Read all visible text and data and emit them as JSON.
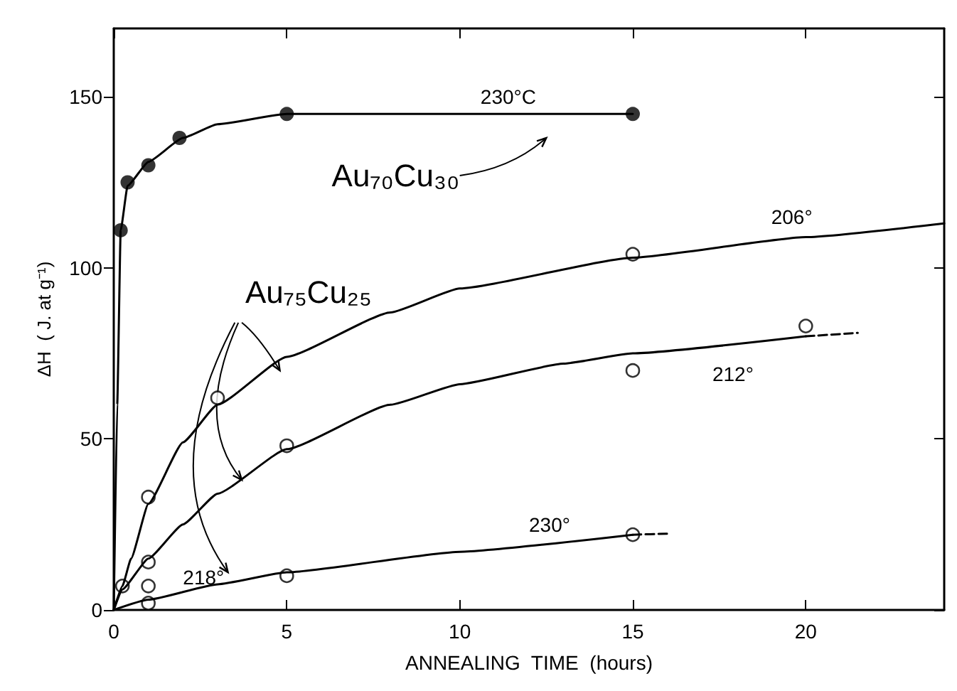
{
  "chart_data": {
    "type": "line",
    "xlabel": "ANNEALING  TIME  (hours)",
    "ylabel": "ΔH  ( J. at g⁻¹)",
    "xlim": [
      0,
      24
    ],
    "ylim": [
      0,
      170
    ],
    "xticks": [
      0,
      5,
      10,
      15,
      20
    ],
    "yticks": [
      0,
      50,
      100,
      150
    ],
    "grid": false,
    "series": [
      {
        "color": "#000000",
        "marker": "none",
        "x": [
          0,
          0.1,
          0.2,
          0.4,
          1,
          2,
          3,
          5,
          15
        ],
        "values": [
          0,
          60,
          111,
          124,
          131,
          138,
          142,
          145,
          145
        ]
      },
      {
        "type": "scatter",
        "color": "#000000",
        "marker": "circle",
        "x": [
          0.2,
          0.4,
          1,
          1.9,
          5,
          15
        ],
        "values": [
          111,
          125,
          130,
          138,
          145,
          145
        ]
      },
      {
        "color": "#000000",
        "marker": "none",
        "x": [
          0,
          0.25,
          0.5,
          1,
          2,
          3,
          5,
          8,
          10,
          15,
          20,
          24
        ],
        "values": [
          0,
          7,
          15,
          31,
          49,
          60,
          74,
          87,
          94,
          103,
          109,
          113
        ]
      },
      {
        "type": "scatter",
        "color": "#000000",
        "marker": "open-circle",
        "x": [
          0.25,
          1,
          3,
          15
        ],
        "values": [
          7,
          33,
          62,
          104
        ]
      },
      {
        "color": "#000000",
        "marker": "none",
        "x": [
          0,
          0.25,
          1,
          2,
          3,
          5,
          8,
          10,
          13,
          15,
          20
        ],
        "values": [
          0,
          6,
          15,
          25,
          34,
          47,
          60,
          66,
          72,
          75,
          80
        ]
      },
      {
        "color": "#000000",
        "marker": "none",
        "line_style": "dashed",
        "x": [
          20,
          21.5
        ],
        "values": [
          80,
          81
        ]
      },
      {
        "type": "scatter",
        "color": "#000000",
        "marker": "open-circle",
        "x": [
          1,
          5,
          15,
          20
        ],
        "values": [
          14,
          48,
          70,
          83
        ]
      },
      {
        "color": "#000000",
        "marker": "none",
        "x": [
          0,
          1,
          3,
          5,
          10,
          15
        ],
        "values": [
          0,
          3,
          7.5,
          11,
          17,
          22
        ]
      },
      {
        "color": "#000000",
        "marker": "none",
        "line_style": "dashed",
        "x": [
          15,
          16
        ],
        "values": [
          22,
          22.3
        ]
      },
      {
        "type": "scatter",
        "color": "#000000",
        "marker": "open-circle",
        "x": [
          1,
          5,
          15
        ],
        "values": [
          2,
          10,
          22
        ]
      },
      {
        "type": "scatter",
        "color": "#000000",
        "marker": "open-circle",
        "x": [
          1
        ],
        "values": [
          7
        ]
      }
    ],
    "annotations": [
      "230°C",
      "Au₇₀Cu₃₀",
      {
        "text": "Au₇₅Cu₂₅",
        "x": 3.7,
        "y": 38
      },
      "206°",
      "212°",
      "230°",
      "218°"
    ]
  }
}
